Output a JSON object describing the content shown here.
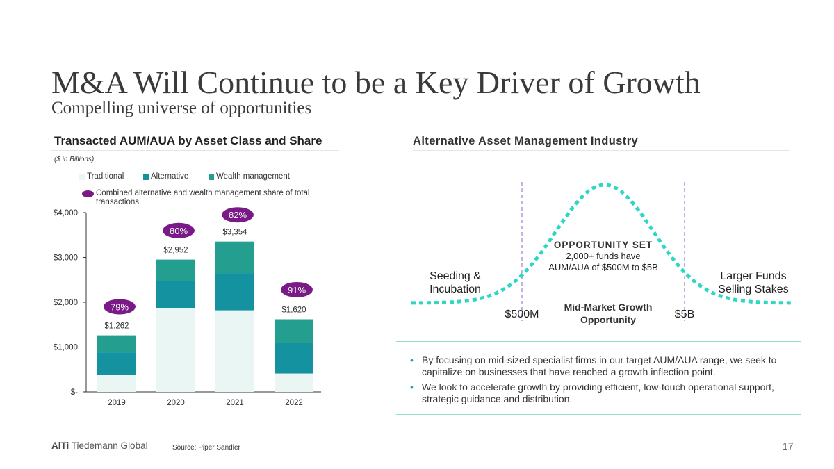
{
  "slide": {
    "title": "M&A Will Continue to be a Key Driver of Growth",
    "subtitle": "Compelling universe of opportunities",
    "page_number": "17",
    "footer_brand_bold": "AlTi",
    "footer_brand_rest": " Tiedemann Global",
    "source": "Source: Piper Sandler"
  },
  "colors": {
    "traditional": "#e9f6f3",
    "alternative": "#14929f",
    "wealth_management": "#249e8e",
    "share_badge": "#7a1a87",
    "curve": "#2ed6c4",
    "divider": "#b48fd0",
    "bullet": "#12a3a8"
  },
  "chart_data": [
    {
      "type": "bar",
      "stacked": true,
      "title": "Transacted AUM/AUA by Asset Class and Share",
      "units_note": "($ in Billions)",
      "categories": [
        "2019",
        "2020",
        "2021",
        "2022"
      ],
      "series": [
        {
          "name": "Traditional",
          "values": [
            382,
            1870,
            1820,
            410
          ]
        },
        {
          "name": "Alternative",
          "values": [
            500,
            610,
            830,
            690
          ]
        },
        {
          "name": "Wealth management",
          "values": [
            380,
            472,
            704,
            520
          ]
        }
      ],
      "totals": [
        1262,
        2952,
        3354,
        1620
      ],
      "total_labels": [
        "$1,262",
        "$2,952",
        "$3,354",
        "$1,620"
      ],
      "share_label_name": "Combined alternative and wealth management share of total transactions",
      "share_labels": [
        "79%",
        "80%",
        "82%",
        "91%"
      ],
      "share_label_y": [
        1900,
        3600,
        3950,
        2280
      ],
      "ylim": [
        0,
        4000
      ],
      "yticks": [
        0,
        1000,
        2000,
        3000,
        4000
      ],
      "ytick_labels": [
        "$-",
        "$1,000",
        "$2,000",
        "$3,000",
        "$4,000"
      ],
      "legend_position": "top",
      "grid": false
    },
    {
      "type": "diagram",
      "title": "Alternative Asset Management Industry",
      "opportunity_heading": "OPPORTUNITY SET",
      "opportunity_line1": "2,000+ funds have",
      "opportunity_line2": "AUM/AUA of $500M to $5B",
      "left_label_line1": "Seeding &",
      "left_label_line2": "Incubation",
      "right_label_line1": "Larger Funds",
      "right_label_line2": "Selling Stakes",
      "low_bound": "$500M",
      "high_bound": "$5B",
      "middle_line1": "Mid-Market Growth",
      "middle_line2": "Opportunity"
    }
  ],
  "bullets": [
    "By focusing on mid-sized specialist firms in our target AUM/AUA range, we seek to capitalize on businesses that have reached a growth inflection point.",
    "We look to accelerate growth by providing efficient, low-touch operational support, strategic guidance and distribution."
  ]
}
